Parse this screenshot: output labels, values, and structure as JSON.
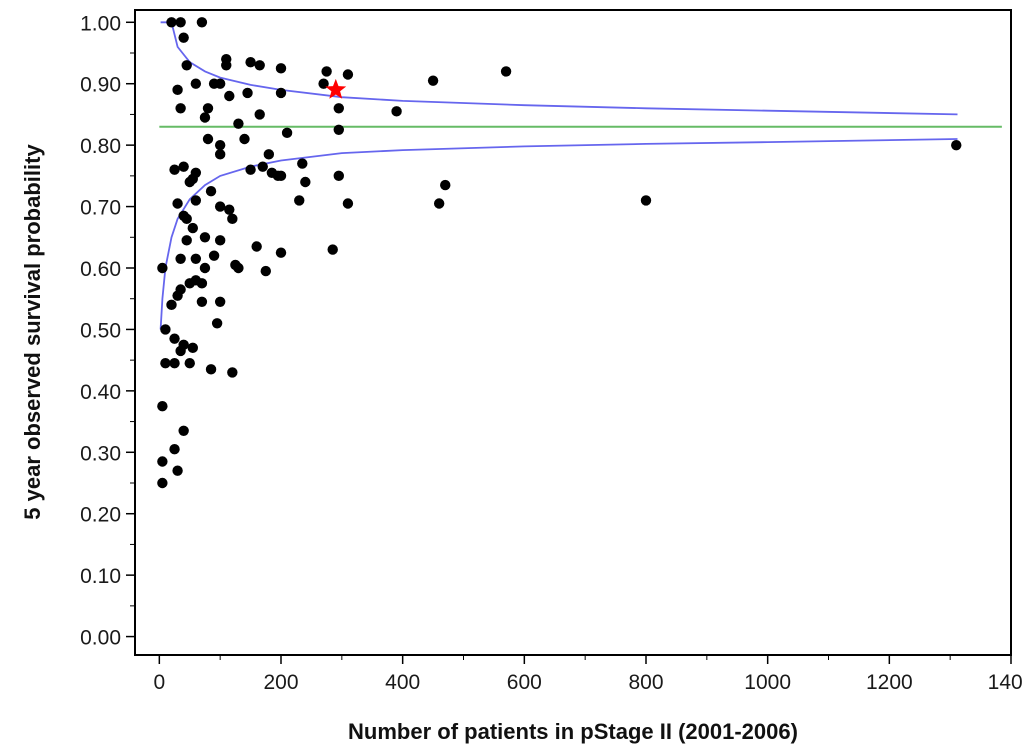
{
  "chart_data": {
    "type": "scatter",
    "title": "",
    "xlabel": "Number of patients in pStage II (2001-2006)",
    "ylabel": "5 year observed survival probability",
    "xlim": [
      -40,
      1400
    ],
    "ylim": [
      -0.03,
      1.02
    ],
    "x_ticks": [
      0,
      200,
      400,
      600,
      800,
      1000,
      1200,
      1400
    ],
    "y_ticks": [
      0.0,
      0.1,
      0.2,
      0.3,
      0.4,
      0.5,
      0.6,
      0.7,
      0.8,
      0.9,
      1.0
    ],
    "x_tick_labels": [
      "0",
      "200",
      "400",
      "600",
      "800",
      "1000",
      "1200",
      "1400"
    ],
    "y_tick_labels": [
      "0.00",
      "0.10",
      "0.20",
      "0.30",
      "0.40",
      "0.50",
      "0.60",
      "0.70",
      "0.80",
      "0.90",
      "1.00"
    ],
    "grid": false,
    "legend": "none",
    "colors": {
      "points": "#000000",
      "highlight": "#ff0000",
      "mean_line": "#66bb66",
      "funnel": "#6666ee",
      "frame": "#000000"
    },
    "reference_line": {
      "y": 0.83,
      "x_range": [
        0,
        1385
      ]
    },
    "funnel_limits": {
      "x": [
        2,
        5,
        10,
        20,
        30,
        50,
        75,
        100,
        150,
        200,
        300,
        400,
        600,
        800,
        1000,
        1312
      ],
      "upper": [
        1.0,
        1.0,
        1.0,
        1.0,
        0.96,
        0.935,
        0.92,
        0.91,
        0.898,
        0.89,
        0.878,
        0.872,
        0.865,
        0.86,
        0.856,
        0.85
      ],
      "lower": [
        0.5,
        0.55,
        0.6,
        0.65,
        0.68,
        0.712,
        0.735,
        0.75,
        0.765,
        0.775,
        0.787,
        0.792,
        0.798,
        0.802,
        0.805,
        0.81
      ]
    },
    "highlight_point": {
      "x": 290,
      "y": 0.89
    },
    "points": [
      [
        20,
        1.0
      ],
      [
        35,
        1.0
      ],
      [
        70,
        1.0
      ],
      [
        40,
        0.975
      ],
      [
        110,
        0.94
      ],
      [
        150,
        0.935
      ],
      [
        110,
        0.93
      ],
      [
        45,
        0.93
      ],
      [
        165,
        0.93
      ],
      [
        200,
        0.925
      ],
      [
        275,
        0.92
      ],
      [
        570,
        0.92
      ],
      [
        310,
        0.915
      ],
      [
        450,
        0.905
      ],
      [
        60,
        0.9
      ],
      [
        90,
        0.9
      ],
      [
        100,
        0.9
      ],
      [
        270,
        0.9
      ],
      [
        30,
        0.89
      ],
      [
        115,
        0.88
      ],
      [
        200,
        0.885
      ],
      [
        145,
        0.885
      ],
      [
        295,
        0.86
      ],
      [
        390,
        0.855
      ],
      [
        80,
        0.86
      ],
      [
        35,
        0.86
      ],
      [
        75,
        0.845
      ],
      [
        165,
        0.85
      ],
      [
        130,
        0.835
      ],
      [
        210,
        0.82
      ],
      [
        295,
        0.825
      ],
      [
        80,
        0.81
      ],
      [
        100,
        0.8
      ],
      [
        140,
        0.81
      ],
      [
        180,
        0.785
      ],
      [
        100,
        0.785
      ],
      [
        25,
        0.76
      ],
      [
        40,
        0.765
      ],
      [
        60,
        0.755
      ],
      [
        150,
        0.76
      ],
      [
        170,
        0.765
      ],
      [
        185,
        0.755
      ],
      [
        195,
        0.75
      ],
      [
        295,
        0.75
      ],
      [
        55,
        0.745
      ],
      [
        50,
        0.74
      ],
      [
        200,
        0.75
      ],
      [
        235,
        0.77
      ],
      [
        240,
        0.74
      ],
      [
        470,
        0.735
      ],
      [
        85,
        0.725
      ],
      [
        30,
        0.705
      ],
      [
        60,
        0.71
      ],
      [
        230,
        0.71
      ],
      [
        310,
        0.705
      ],
      [
        460,
        0.705
      ],
      [
        800,
        0.71
      ],
      [
        100,
        0.7
      ],
      [
        115,
        0.695
      ],
      [
        40,
        0.685
      ],
      [
        45,
        0.68
      ],
      [
        120,
        0.68
      ],
      [
        55,
        0.665
      ],
      [
        75,
        0.65
      ],
      [
        100,
        0.645
      ],
      [
        45,
        0.645
      ],
      [
        160,
        0.635
      ],
      [
        200,
        0.625
      ],
      [
        285,
        0.63
      ],
      [
        90,
        0.62
      ],
      [
        35,
        0.615
      ],
      [
        60,
        0.615
      ],
      [
        75,
        0.6
      ],
      [
        125,
        0.605
      ],
      [
        130,
        0.6
      ],
      [
        175,
        0.595
      ],
      [
        5,
        0.6
      ],
      [
        60,
        0.58
      ],
      [
        50,
        0.575
      ],
      [
        70,
        0.575
      ],
      [
        35,
        0.565
      ],
      [
        30,
        0.555
      ],
      [
        100,
        0.545
      ],
      [
        70,
        0.545
      ],
      [
        20,
        0.54
      ],
      [
        95,
        0.51
      ],
      [
        10,
        0.5
      ],
      [
        25,
        0.485
      ],
      [
        40,
        0.475
      ],
      [
        55,
        0.47
      ],
      [
        35,
        0.465
      ],
      [
        10,
        0.445
      ],
      [
        25,
        0.445
      ],
      [
        50,
        0.445
      ],
      [
        85,
        0.435
      ],
      [
        120,
        0.43
      ],
      [
        5,
        0.375
      ],
      [
        40,
        0.335
      ],
      [
        25,
        0.305
      ],
      [
        5,
        0.285
      ],
      [
        30,
        0.27
      ],
      [
        5,
        0.25
      ],
      [
        1310,
        0.8
      ]
    ]
  }
}
